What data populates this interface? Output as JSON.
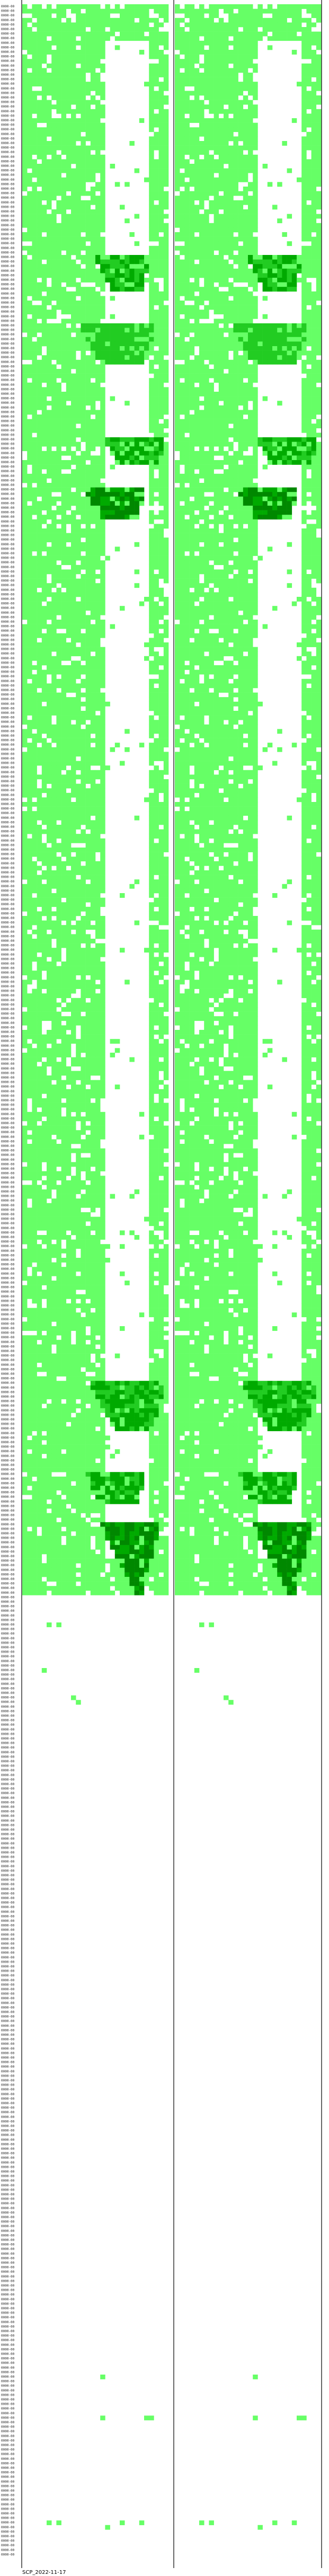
{
  "chart_data": {
    "type": "heatmap",
    "caption": "SCP_2022-11-17",
    "panels": 2,
    "rows": 560,
    "columns_per_panel": 30,
    "rows_with_data": 349,
    "colors": {
      "background": "#ffffff",
      "level_1": "#66ff66",
      "level_2": "#22cc22",
      "level_3": "#00aa00",
      "level_4": "#008800",
      "separator": "#000000"
    },
    "row_label_pattern": "0000-00",
    "grid": false,
    "legend": "none",
    "patterns": {
      "white_stripe": {
        "row_range": [
          8,
          340
        ],
        "col_start": 17,
        "col_end": 25
      },
      "dense_clusters": [
        {
          "rows": [
            55,
            62
          ],
          "cols": [
            15,
            25
          ],
          "level": 3
        },
        {
          "rows": [
            70,
            78
          ],
          "cols": [
            12,
            26
          ],
          "level": 2
        },
        {
          "rows": [
            95,
            100
          ],
          "cols": [
            17,
            28
          ],
          "level": 3
        },
        {
          "rows": [
            106,
            112
          ],
          "cols": [
            13,
            24
          ],
          "level": 4
        },
        {
          "rows": [
            302,
            312
          ],
          "cols": [
            14,
            28
          ],
          "level": 3
        },
        {
          "rows": [
            322,
            328
          ],
          "cols": [
            13,
            24
          ],
          "level": 3
        },
        {
          "rows": [
            333,
            348
          ],
          "cols": [
            16,
            27
          ],
          "level": 4
        }
      ],
      "sparse_cells_after_data": [
        {
          "row": 355,
          "col": 5
        },
        {
          "row": 355,
          "col": 7
        },
        {
          "row": 365,
          "col": 4
        },
        {
          "row": 371,
          "col": 10
        },
        {
          "row": 372,
          "col": 11
        },
        {
          "row": 520,
          "col": 16
        },
        {
          "row": 529,
          "col": 16
        },
        {
          "row": 529,
          "col": 25
        },
        {
          "row": 529,
          "col": 26
        },
        {
          "row": 552,
          "col": 5
        },
        {
          "row": 552,
          "col": 7
        },
        {
          "row": 553,
          "col": 17
        },
        {
          "row": 552,
          "col": 20
        },
        {
          "row": 552,
          "col": 24
        }
      ]
    }
  }
}
